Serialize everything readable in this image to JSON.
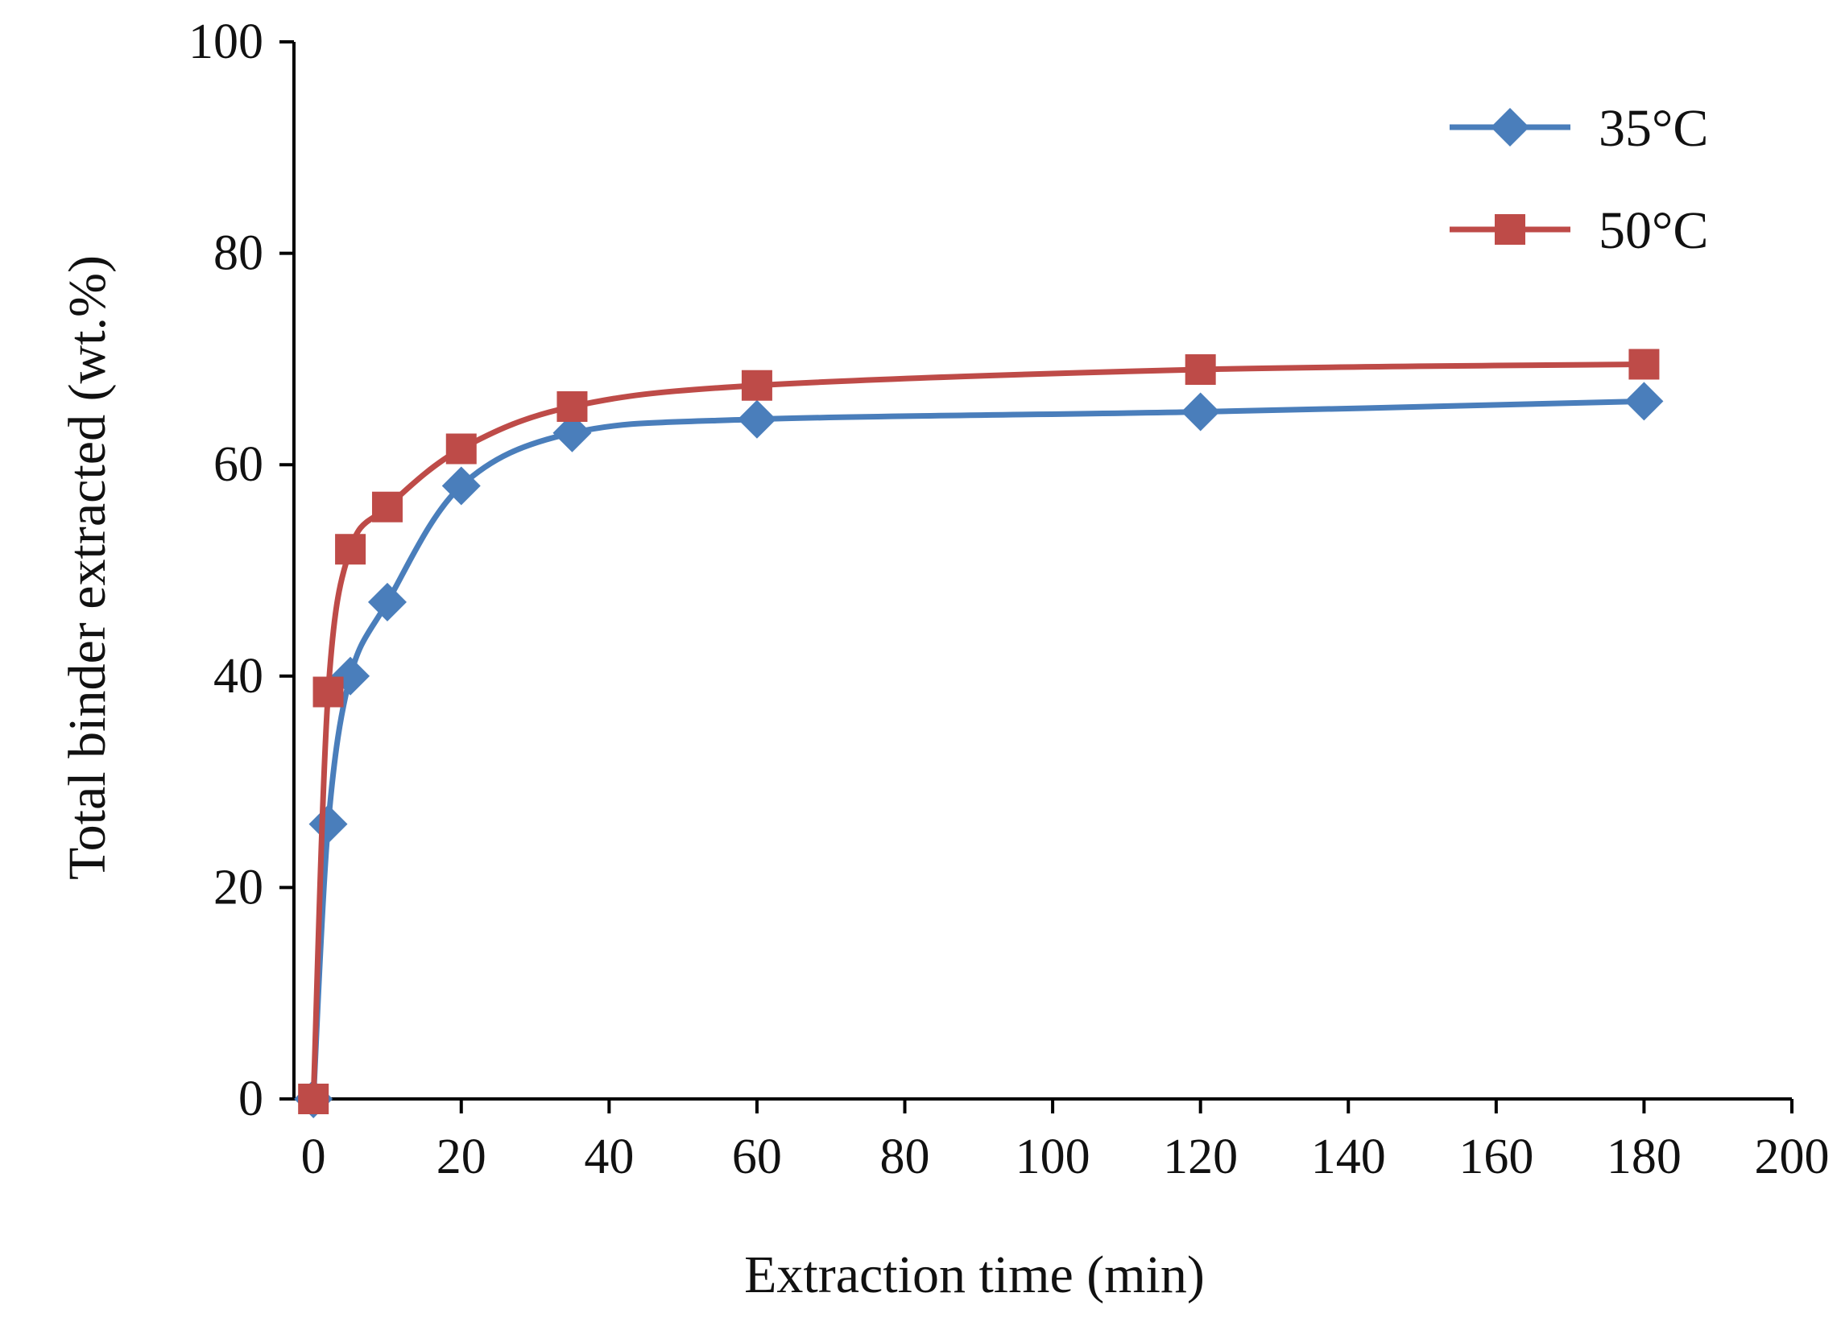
{
  "chart_data": {
    "type": "line",
    "title": "",
    "xlabel": "Extraction time (min)",
    "ylabel": "Total binder extracted (wt.%)",
    "xlim": [
      0,
      200
    ],
    "ylim": [
      0,
      100
    ],
    "xticks": [
      0,
      20,
      40,
      60,
      80,
      100,
      120,
      140,
      160,
      180,
      200
    ],
    "yticks": [
      0,
      20,
      40,
      60,
      80,
      100
    ],
    "grid": false,
    "legend_position": "top-right",
    "series": [
      {
        "name": "35°C",
        "color": "#4a7ebb",
        "marker": "diamond",
        "points": [
          {
            "x": 0,
            "y": 0
          },
          {
            "x": 2,
            "y": 26
          },
          {
            "x": 5,
            "y": 40
          },
          {
            "x": 10,
            "y": 47
          },
          {
            "x": 20,
            "y": 58
          },
          {
            "x": 35,
            "y": 63
          },
          {
            "x": 60,
            "y": 64.3
          },
          {
            "x": 120,
            "y": 65
          },
          {
            "x": 180,
            "y": 66
          }
        ]
      },
      {
        "name": "50°C",
        "color": "#be4b48",
        "marker": "square",
        "points": [
          {
            "x": 0,
            "y": 0
          },
          {
            "x": 2,
            "y": 38.5
          },
          {
            "x": 5,
            "y": 52
          },
          {
            "x": 10,
            "y": 56
          },
          {
            "x": 20,
            "y": 61.5
          },
          {
            "x": 35,
            "y": 65.5
          },
          {
            "x": 60,
            "y": 67.5
          },
          {
            "x": 120,
            "y": 69
          },
          {
            "x": 180,
            "y": 69.5
          }
        ]
      }
    ]
  }
}
